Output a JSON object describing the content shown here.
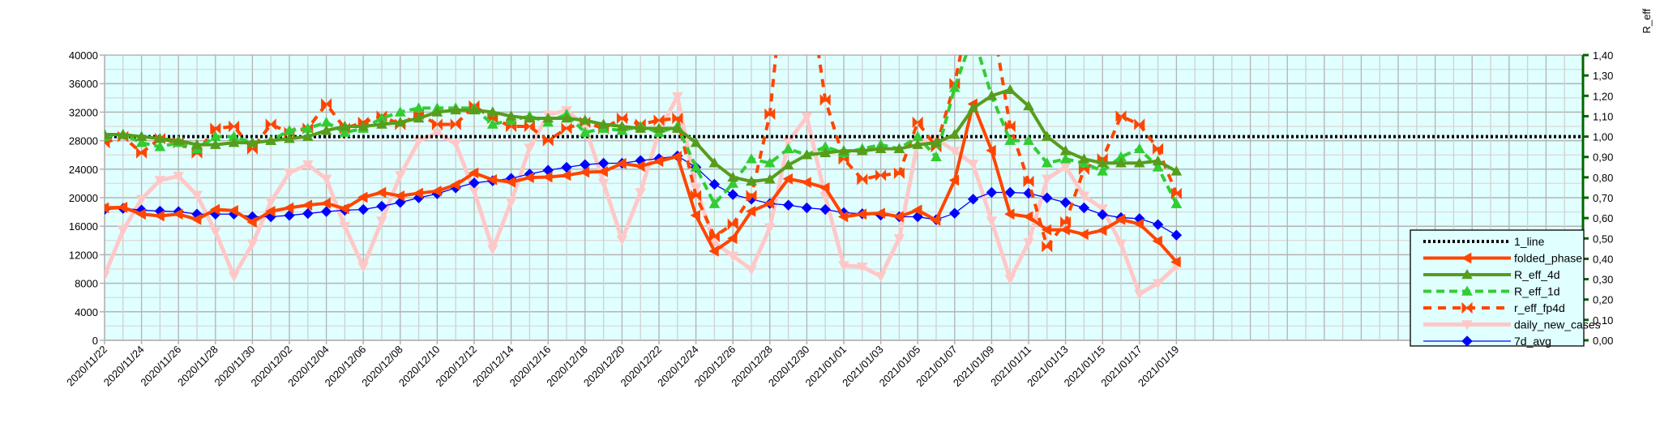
{
  "chart_data": {
    "type": "line",
    "title": "",
    "xlabel": "",
    "ylabel": "",
    "y2label": "R_eff",
    "ylim": [
      0,
      40000
    ],
    "y2lim": [
      0,
      1.4
    ],
    "yticks": [
      "0",
      "4000",
      "8000",
      "12000",
      "16000",
      "20000",
      "24000",
      "28000",
      "32000",
      "36000",
      "40000"
    ],
    "y2ticks": [
      "0,00",
      "0,10",
      "0,20",
      "0,30",
      "0,40",
      "0,50",
      "0,60",
      "0,70",
      "0,80",
      "0,90",
      "1,00",
      "1,10",
      "1,20",
      "1,30",
      "1,40"
    ],
    "x_days_total": 80,
    "xticks": [
      "2020/11/22",
      "2020/11/24",
      "2020/11/26",
      "2020/11/28",
      "2020/11/30",
      "2020/12/02",
      "2020/12/04",
      "2020/12/06",
      "2020/12/08",
      "2020/12/10",
      "2020/12/12",
      "2020/12/14",
      "2020/12/16",
      "2020/12/18",
      "2020/12/20",
      "2020/12/22",
      "2020/12/24",
      "2020/12/26",
      "2020/12/28",
      "2020/12/30",
      "2021/01/01",
      "2021/01/03",
      "2021/01/05",
      "2021/01/07",
      "2021/01/09",
      "2021/01/11",
      "2021/01/13",
      "2021/01/15",
      "2021/01/17",
      "2021/01/19"
    ],
    "grid": true,
    "legend_position": "bottom-right",
    "series": [
      {
        "name": "1_line",
        "axis": "right",
        "color": "#000000",
        "values": [
          1.0,
          1.0
        ]
      },
      {
        "name": "folded_phase",
        "axis": "left",
        "color": "#ff4500",
        "values": [
          18580,
          18650,
          17700,
          17440,
          17700,
          16950,
          18350,
          18200,
          16570,
          18090,
          18580,
          18960,
          19220,
          18460,
          20060,
          20740,
          20250,
          20630,
          20930,
          21800,
          23470,
          22520,
          22180,
          22820,
          22900,
          23130,
          23580,
          23660,
          24800,
          24420,
          25100,
          25780,
          17520,
          12510,
          14290,
          18090,
          19220,
          22640,
          22140,
          21380,
          17330,
          17700,
          17820,
          17330,
          18270,
          16830,
          22450,
          33140,
          26620,
          17700,
          17330,
          15500,
          15500,
          14860,
          15430,
          16950,
          16300,
          13910,
          11000
        ]
      },
      {
        "name": "R_eff_4d",
        "axis": "right",
        "color": "#579d1c",
        "values": [
          1.01,
          1.01,
          1.0,
          0.99,
          0.98,
          0.96,
          0.96,
          0.97,
          0.97,
          0.98,
          0.99,
          1.0,
          1.03,
          1.05,
          1.05,
          1.06,
          1.07,
          1.09,
          1.12,
          1.13,
          1.13,
          1.12,
          1.1,
          1.09,
          1.09,
          1.09,
          1.08,
          1.06,
          1.05,
          1.04,
          1.04,
          1.04,
          0.97,
          0.87,
          0.8,
          0.78,
          0.79,
          0.86,
          0.91,
          0.92,
          0.93,
          0.93,
          0.94,
          0.94,
          0.96,
          0.97,
          1.01,
          1.14,
          1.2,
          1.23,
          1.15,
          1.0,
          0.93,
          0.89,
          0.87,
          0.87,
          0.87,
          0.88,
          0.83
        ]
      },
      {
        "name": "R_eff_1d",
        "axis": "right",
        "color": "#33cc33",
        "values": [
          1.0,
          1.01,
          0.97,
          0.95,
          0.97,
          0.94,
          1.0,
          1.0,
          0.97,
          0.98,
          1.03,
          1.04,
          1.07,
          1.02,
          1.04,
          1.09,
          1.12,
          1.14,
          1.14,
          1.14,
          1.14,
          1.06,
          1.08,
          1.1,
          1.07,
          1.11,
          1.02,
          1.04,
          1.03,
          1.05,
          1.02,
          1.05,
          0.85,
          0.67,
          0.77,
          0.89,
          0.87,
          0.94,
          0.91,
          0.95,
          0.92,
          0.94,
          0.96,
          0.94,
          1.0,
          0.9,
          1.24,
          1.5,
          1.2,
          0.98,
          0.98,
          0.87,
          0.89,
          0.87,
          0.83,
          0.9,
          0.94,
          0.85,
          0.67
        ]
      },
      {
        "name": "r_eff_fp4d",
        "axis": "right",
        "color": "#ff4500",
        "values": [
          0.97,
          1.0,
          0.92,
          0.99,
          0.97,
          0.92,
          1.04,
          1.05,
          0.94,
          1.06,
          1.02,
          1.04,
          1.16,
          1.04,
          1.07,
          1.1,
          1.06,
          1.11,
          1.06,
          1.06,
          1.15,
          1.09,
          1.05,
          1.05,
          0.98,
          1.04,
          1.07,
          1.04,
          1.09,
          1.06,
          1.08,
          1.09,
          0.71,
          0.51,
          0.57,
          0.71,
          1.11,
          2.0,
          1.8,
          1.18,
          0.89,
          0.79,
          0.81,
          0.82,
          1.07,
          0.95,
          1.26,
          1.7,
          1.6,
          1.05,
          0.78,
          0.46,
          0.58,
          0.84,
          0.89,
          1.1,
          1.06,
          0.94,
          0.72
        ]
      },
      {
        "name": "daily_new_cases",
        "axis": "left",
        "color": "#ffc8c8",
        "values": [
          9100,
          15430,
          19790,
          22450,
          23020,
          20360,
          15240,
          8990,
          13540,
          19410,
          23510,
          24640,
          22640,
          16000,
          10310,
          16760,
          23130,
          27940,
          29080,
          27560,
          20930,
          12780,
          19410,
          26990,
          31620,
          32230,
          30100,
          22070,
          14100,
          20740,
          29270,
          34200,
          21300,
          13730,
          11830,
          9930,
          15810,
          27830,
          31350,
          20170,
          10500,
          10310,
          8990,
          14290,
          27830,
          28270,
          26540,
          24720,
          16760,
          8600,
          13730,
          22640,
          24340,
          20250,
          18460,
          13540,
          6500,
          8000,
          10400
        ]
      },
      {
        "name": "7d_avg",
        "axis": "left",
        "color": "#0000ff",
        "values": [
          18350,
          18500,
          18270,
          18120,
          18050,
          17700,
          17700,
          17700,
          17330,
          17330,
          17520,
          17780,
          18050,
          18240,
          18350,
          18800,
          19330,
          19980,
          20550,
          21380,
          22070,
          22370,
          22710,
          23320,
          23850,
          24260,
          24640,
          24830,
          24830,
          25210,
          25480,
          25860,
          24260,
          21880,
          20440,
          19790,
          19180,
          18960,
          18580,
          18350,
          17900,
          17740,
          17550,
          17330,
          17330,
          16910,
          17820,
          19790,
          20740,
          20740,
          20630,
          19980,
          19330,
          18580,
          17630,
          17210,
          17060,
          16230,
          14750
        ]
      }
    ]
  }
}
